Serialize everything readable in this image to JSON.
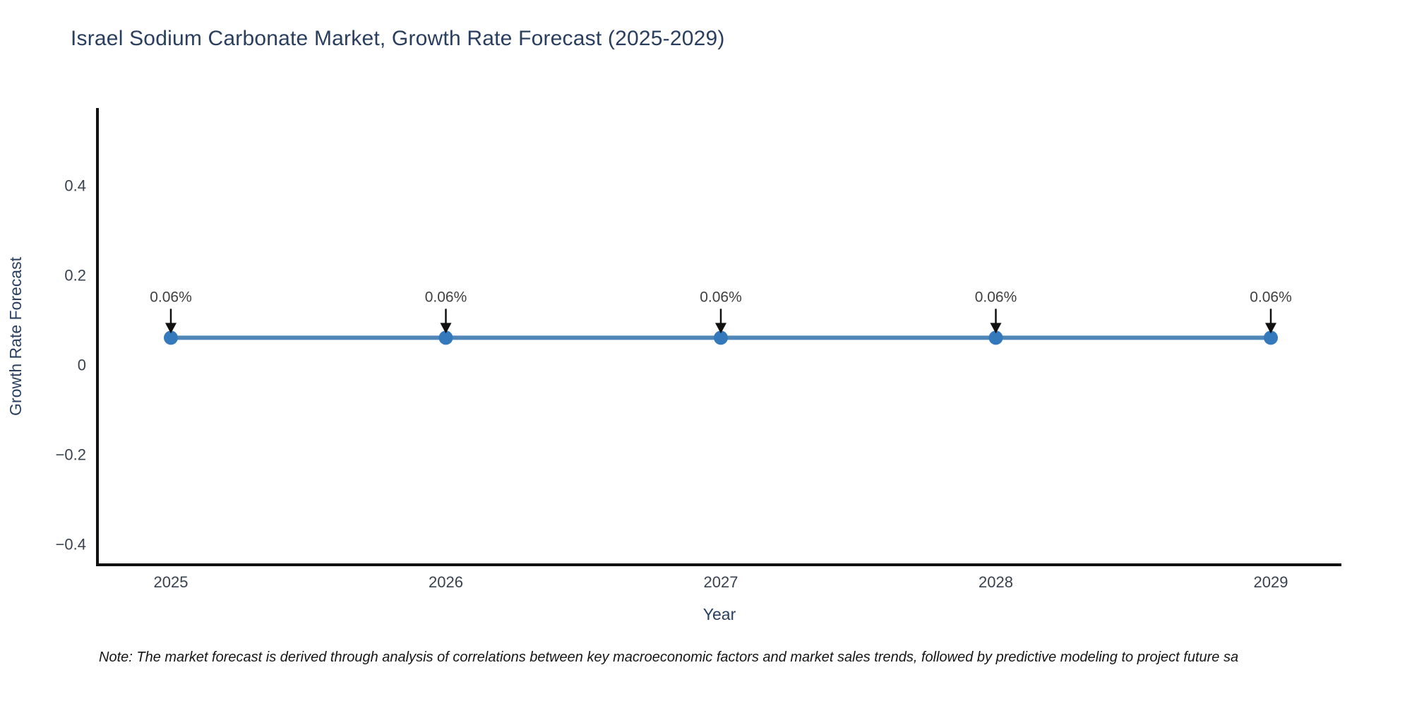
{
  "header": {
    "title": "Israel Sodium Carbonate Market, Growth Rate Forecast (2025-2029)"
  },
  "footer": {
    "note": "Note: The market forecast is derived through analysis of correlations between key macroeconomic factors and market sales trends, followed by predictive modeling to project future sa"
  },
  "chart_data": {
    "type": "line",
    "title": "Israel Sodium Carbonate Market, Growth Rate Forecast (2025-2029)",
    "xlabel": "Year",
    "ylabel": "Growth Rate Forecast",
    "categories": [
      "2025",
      "2026",
      "2027",
      "2028",
      "2029"
    ],
    "series": [
      {
        "name": "Growth Rate Forecast",
        "values": [
          0.06,
          0.06,
          0.06,
          0.06,
          0.06
        ]
      }
    ],
    "point_labels": [
      "0.06%",
      "0.06%",
      "0.06%",
      "0.06%",
      "0.06%"
    ],
    "annotation_style": "label with downward black arrow to each point",
    "yticks": [
      0.4,
      0.2,
      0,
      -0.2,
      -0.4
    ],
    "ytick_labels": [
      "0.4",
      "0.2",
      "0",
      "−0.2",
      "−0.4"
    ],
    "ylim": [
      -0.45,
      0.57
    ],
    "grid": false,
    "legend_position": "none",
    "colors": {
      "line": "#4e86b8",
      "marker": "#3579bd",
      "arrow": "#111111",
      "axis": "#111111",
      "title_text": "#2a3f5f",
      "axis_label_text": "#2a3f5f",
      "tick_text": "#39424e",
      "annotation_text": "#3f3f3f",
      "background": "#ffffff"
    }
  }
}
